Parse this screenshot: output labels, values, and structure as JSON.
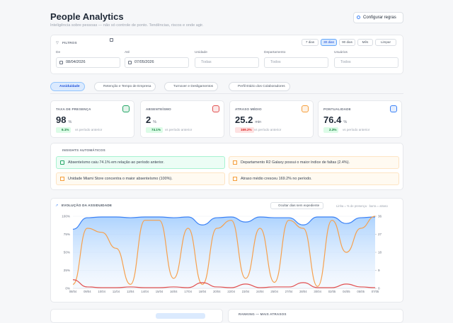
{
  "header": {
    "title": "People Analytics",
    "subtitle": "Inteligência sobre pessoas — não só controle de ponto. Tendências, riscos e onde agir.",
    "button": "Configurar regras"
  },
  "filters": {
    "title": "FILTROS",
    "ranges": [
      "7 dias",
      "30 dias",
      "90 dias",
      "Mês",
      "Limpar"
    ],
    "active_range": 1,
    "fields": [
      {
        "label": "De",
        "value": "08/04/2026"
      },
      {
        "label": "Até",
        "value": "07/05/2026"
      },
      {
        "label": "Unidade",
        "value": "Todas"
      },
      {
        "label": "Departamento",
        "value": "Todos"
      },
      {
        "label": "Usuários",
        "value": "Todos"
      }
    ]
  },
  "tabs": {
    "items": [
      "Assiduidade",
      "Retenção e Tempo de Empresa",
      "Turnover e Desligamentos",
      "Perfil Etário dos Colaboradores"
    ],
    "active": 0
  },
  "kpis": [
    {
      "label": "TAXA DE PRESENÇA",
      "value": "98",
      "unit": "%",
      "change": "6.1%",
      "comparison": "vs período anterior",
      "tone": "good",
      "color": "#22a565"
    },
    {
      "label": "ABSENTEÍSMO",
      "value": "2",
      "unit": "%",
      "change": "74.1%",
      "comparison": "vs período anterior",
      "tone": "good",
      "color": "#e25050"
    },
    {
      "label": "ATRASO MÉDIO",
      "value": "25.2",
      "unit": "min",
      "change": "169.2%",
      "comparison": "vs período anterior",
      "tone": "bad",
      "color": "#f59e3b"
    },
    {
      "label": "PONTUALIDADE",
      "value": "76.4",
      "unit": "%",
      "change": "2.3%",
      "comparison": "vs período anterior",
      "tone": "good",
      "color": "#3b82f6"
    }
  ],
  "insights": {
    "title": "INSIGHTS AUTOMÁTICOS",
    "items": [
      {
        "text": "Absenteísmo caiu 74.1% em relação ao período anterior.",
        "tone": "good"
      },
      {
        "text": "Departamento R2 Galaxy possui o maior índice de faltas (2.4%).",
        "tone": "warn"
      },
      {
        "text": "Unidade Miami Store concentra o maior absenteísmo (100%).",
        "tone": "warn"
      },
      {
        "text": "Atraso médio cresceu 169.2% no período.",
        "tone": "warn"
      }
    ]
  },
  "chart_data": {
    "type": "line",
    "title": "EVOLUÇÃO DA ASSIDUIDADE",
    "toggle": "Ocultar dias sem expediente",
    "note": "Linha = % de presença · barra = atraso",
    "categories": [
      "08/04",
      "09/04",
      "10/04",
      "11/04",
      "13/04",
      "14/04",
      "15/04",
      "16/04",
      "17/04",
      "18/04",
      "20/04",
      "22/04",
      "23/04",
      "24/04",
      "25/04",
      "27/04",
      "28/04",
      "30/04",
      "02/05",
      "04/05",
      "05/05",
      "07/05"
    ],
    "ylim": [
      0,
      100
    ],
    "yticks": [
      {
        "value": 0,
        "label": "0%"
      },
      {
        "value": 25,
        "label": "25%"
      },
      {
        "value": 50,
        "label": "50%"
      },
      {
        "value": 75,
        "label": "75%"
      },
      {
        "value": 100,
        "label": "100%"
      }
    ],
    "y2lim": [
      0,
      36
    ],
    "y2ticks": [
      0,
      9,
      18,
      27,
      36
    ],
    "grid": true,
    "series": [
      {
        "color": "#3b82f6",
        "area": true,
        "values": [
          82,
          98,
          99,
          99,
          98,
          99,
          99,
          98,
          99,
          88,
          98,
          99,
          92,
          99,
          98,
          98,
          88,
          99,
          99,
          90,
          98,
          99
        ]
      },
      {
        "color": "#f6a04d",
        "axis": "y2",
        "values": [
          2,
          30,
          28,
          20,
          2,
          34,
          34,
          5,
          30,
          2,
          30,
          34,
          5,
          30,
          3,
          34,
          30,
          1,
          34,
          18,
          30,
          36
        ]
      },
      {
        "color": "#e25050",
        "values": [
          12,
          2,
          1,
          1,
          2,
          1,
          1,
          2,
          1,
          8,
          2,
          1,
          6,
          1,
          2,
          2,
          8,
          1,
          1,
          6,
          2,
          1
        ]
      }
    ]
  },
  "bottom": {
    "ranking_title": "RANKING — MAIS ATRASOS"
  }
}
